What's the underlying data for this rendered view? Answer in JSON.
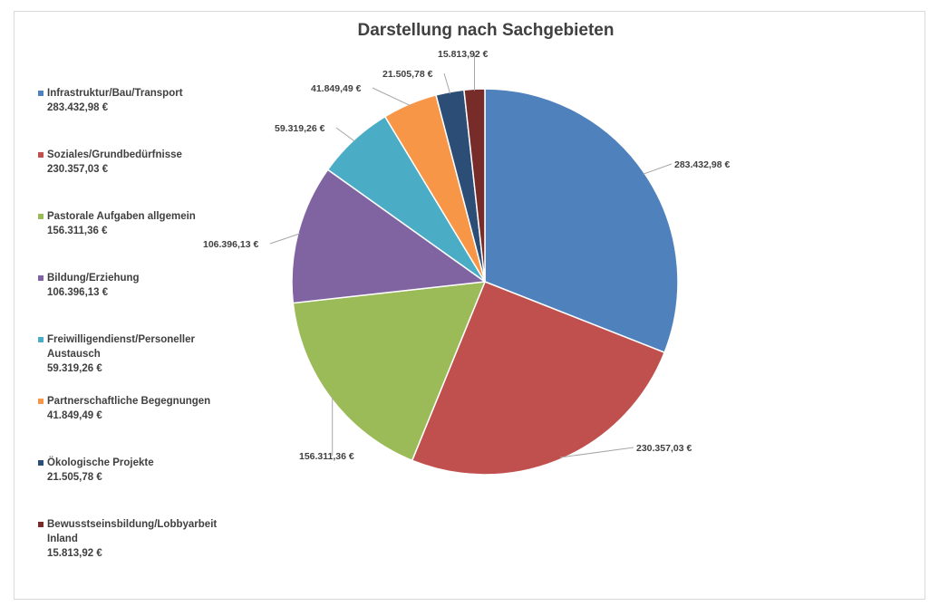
{
  "chart_data": {
    "type": "pie",
    "title": "Darstellung nach Sachgebieten",
    "legend_position": "left",
    "slices": [
      {
        "label": "Infrastruktur/Bau/Transport",
        "value": 283432.98,
        "display": "283.432,98 €",
        "color": "#4f81bd"
      },
      {
        "label": "Soziales/Grundbedürfnisse",
        "value": 230357.03,
        "display": "230.357,03 €",
        "color": "#c0504d"
      },
      {
        "label": "Pastorale Aufgaben allgemein",
        "value": 156311.36,
        "display": "156.311,36 €",
        "color": "#9bbb59"
      },
      {
        "label": "Bildung/Erziehung",
        "value": 106396.13,
        "display": "106.396,13 €",
        "color": "#8064a2"
      },
      {
        "label": "Freiwilligendienst/Personeller Austausch",
        "value": 59319.26,
        "display": "59.319,26 €",
        "color": "#4bacc6"
      },
      {
        "label": "Partnerschaftliche Begegnungen",
        "value": 41849.49,
        "display": "41.849,49 €",
        "color": "#f79646"
      },
      {
        "label": "Ökologische Projekte",
        "value": 21505.78,
        "display": "21.505,78 €",
        "color": "#2c4d75"
      },
      {
        "label": "Bewusstseinsbildung/Lobbyarbeit Inland",
        "value": 15813.92,
        "display": "15.813,92 €",
        "color": "#772c2a"
      }
    ]
  }
}
